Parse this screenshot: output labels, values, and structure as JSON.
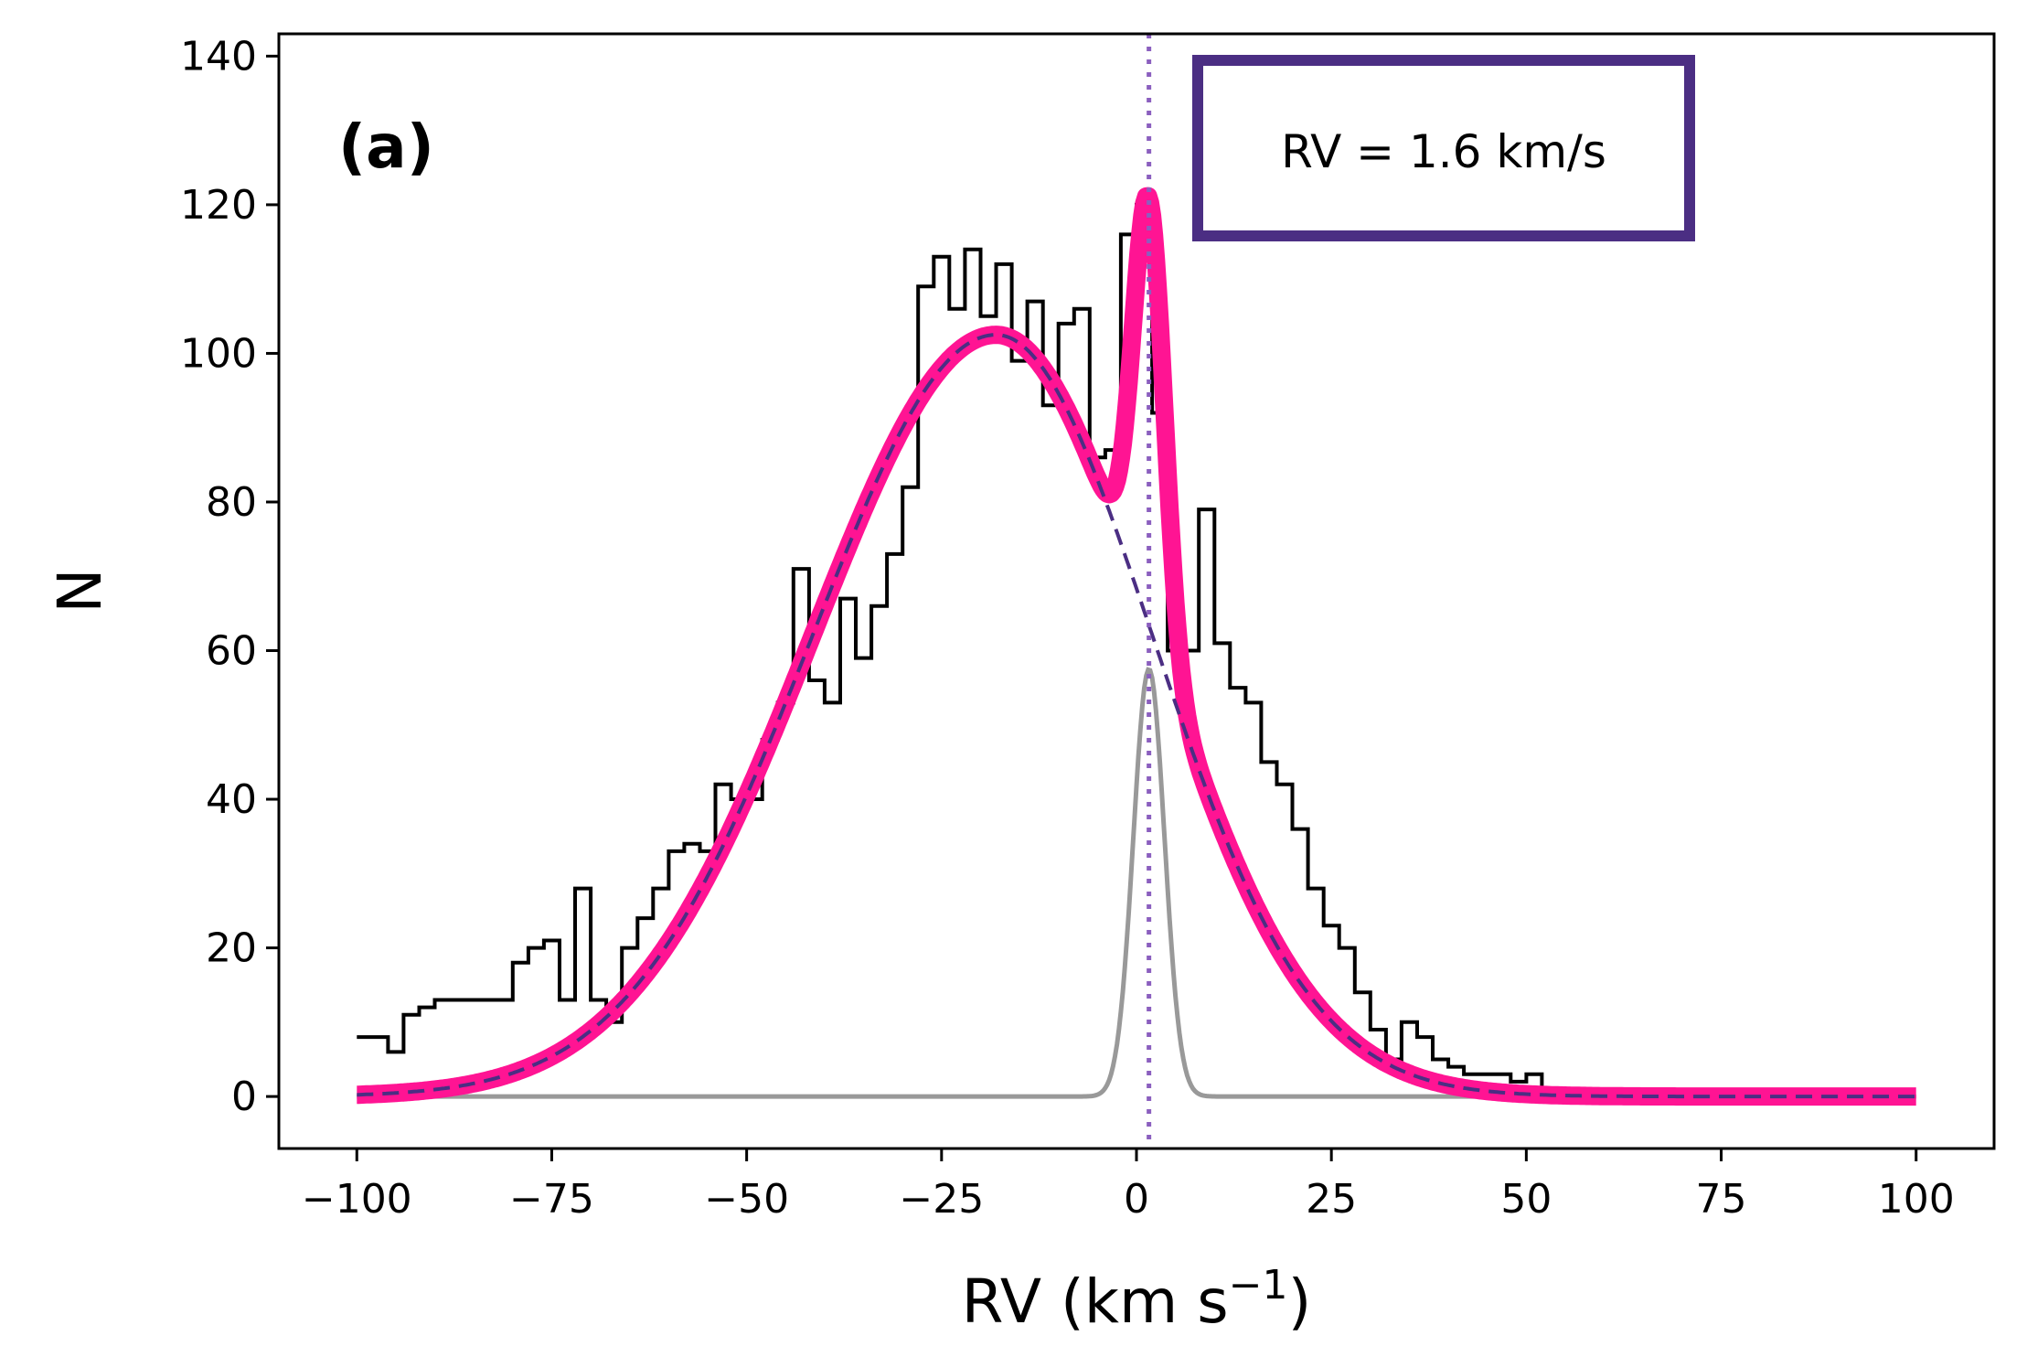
{
  "chart_data": {
    "type": "histogram+line",
    "panel_label": "(a)",
    "xlabel": "RV (km s",
    "xlabel_sup": "−1",
    "xlabel_end": ")",
    "ylabel": "N",
    "xlim": [
      -110,
      110
    ],
    "ylim": [
      -7,
      143
    ],
    "xticks": [
      -100,
      -75,
      -50,
      -25,
      0,
      25,
      50,
      75,
      100
    ],
    "xtick_labels": [
      "−100",
      "−75",
      "−50",
      "−25",
      "0",
      "25",
      "50",
      "75",
      "100"
    ],
    "yticks": [
      0,
      20,
      40,
      60,
      80,
      100,
      120,
      140
    ],
    "ytick_labels": [
      "0",
      "20",
      "40",
      "60",
      "80",
      "100",
      "120",
      "140"
    ],
    "annotation": {
      "text": "RV = 1.6 km/s"
    },
    "vline_x": 1.6,
    "colors": {
      "histogram": "#000000",
      "total_fit": "#ff1493",
      "broad_component": "#4b2e83",
      "narrow_component": "#999999",
      "vline": "#8b5fbf",
      "annotation_border": "#4b2e83"
    },
    "histogram": {
      "bin_width": 2,
      "start": -100,
      "counts": [
        8,
        8,
        6,
        11,
        12,
        13,
        13,
        13,
        13,
        13,
        18,
        20,
        21,
        13,
        28,
        13,
        10,
        20,
        24,
        28,
        33,
        34,
        33,
        42,
        40,
        40,
        48,
        53,
        71,
        56,
        53,
        67,
        59,
        66,
        73,
        82,
        109,
        113,
        106,
        114,
        105,
        112,
        99,
        107,
        93,
        104,
        106,
        86,
        87,
        116,
        120,
        92,
        60,
        60,
        79,
        61,
        55,
        53,
        45,
        42,
        36,
        28,
        23,
        20,
        14,
        9,
        5,
        10,
        8,
        5,
        4,
        3,
        3,
        3,
        2,
        3,
        1,
        1,
        1,
        0,
        0,
        1,
        0,
        0,
        0,
        0,
        0,
        0,
        0,
        0,
        0,
        0,
        0,
        0,
        0,
        0,
        0,
        0,
        0,
        0
      ]
    },
    "broad_component": {
      "model": "skewed-gaussian",
      "peak": 102.5,
      "center": -18,
      "sigma_left": 23.5,
      "sigma_right": 20
    },
    "narrow_component": {
      "model": "gaussian",
      "amplitude": 57.5,
      "center": 1.6,
      "sigma": 2.0
    }
  }
}
